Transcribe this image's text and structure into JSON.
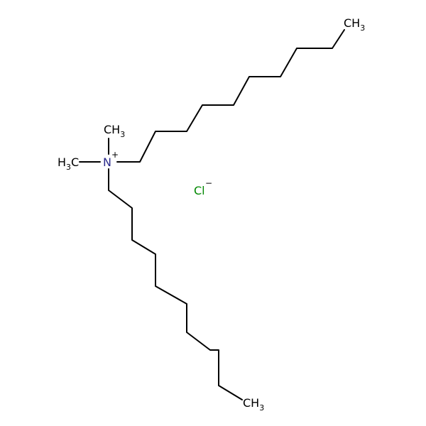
{
  "molecule": {
    "atoms": {
      "methyl_top": {
        "main": "CH",
        "sub": "3"
      },
      "methyl_left": {
        "pre": "H",
        "sub": "3",
        "post": "C"
      },
      "nitrogen": {
        "symbol": "N",
        "charge": "+"
      },
      "chain_end_top": {
        "main": "CH",
        "sub": "3"
      },
      "chain_end_bottom": {
        "main": "CH",
        "sub": "3"
      },
      "chloride": {
        "symbol": "Cl",
        "charge": "−"
      }
    },
    "colors": {
      "bond": "#000000",
      "carbon_label": "#000000",
      "nitrogen": "#2B2B8C",
      "chloride": "#008800"
    }
  }
}
